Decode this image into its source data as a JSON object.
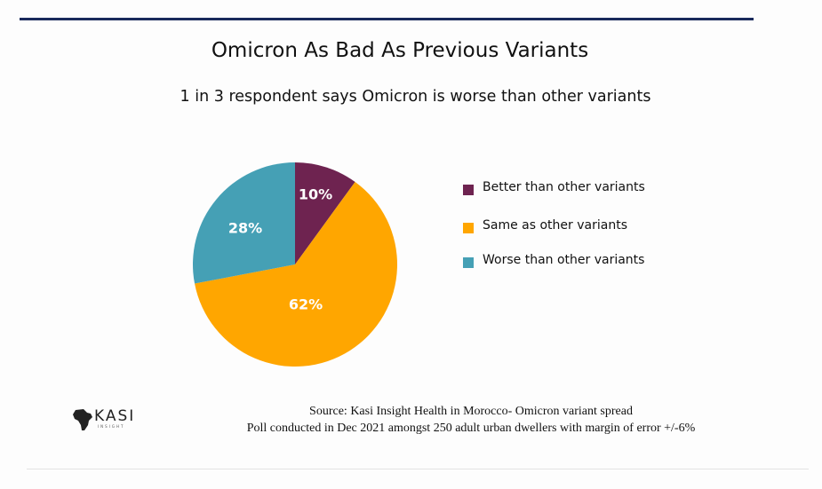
{
  "header": {
    "title": "Omicron As Bad As Previous Variants",
    "subtitle": "1 in 3 respondent says Omicron is worse than other variants"
  },
  "chart_data": {
    "type": "pie",
    "title": "Omicron As Bad As Previous Variants",
    "subtitle": "1 in 3 respondent says Omicron is worse than other variants",
    "categories": [
      "Better than other variants",
      "Same as other variants",
      "Worse than other variants"
    ],
    "values": [
      10,
      62,
      28
    ],
    "value_labels": [
      "10%",
      "62%",
      "28%"
    ],
    "colors": [
      "#6e2350",
      "#ffa600",
      "#45a0b5"
    ],
    "legend_position": "right",
    "start_angle": "12 o'clock",
    "direction": "clockwise"
  },
  "footer": {
    "source_line1": "Source: Kasi Insight  Health in Morocco- Omicron variant spread",
    "source_line2": "Poll conducted in Dec 2021 amongst 250 adult urban dwellers with margin of error +/-6%",
    "logo_word": "KASI",
    "logo_sub": "INSIGHT",
    "logo_icon": "africa-map-icon"
  }
}
